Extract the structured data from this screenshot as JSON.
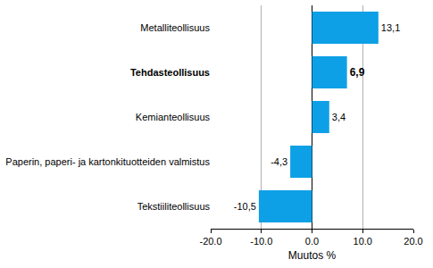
{
  "chart_data": {
    "type": "bar",
    "orientation": "horizontal",
    "categories": [
      "Metalliteollisuus",
      "Tehdasteollisuus",
      "Kemianteollisuus",
      "Paperin, paperi- ja kartonkituotteiden valmistus",
      "Tekstiiliteollisuus"
    ],
    "values": [
      13.1,
      6.9,
      3.4,
      -4.3,
      -10.5
    ],
    "value_labels": [
      "13,1",
      "6,9",
      "3,4",
      "-4,3",
      "-10,5"
    ],
    "data_labels": true,
    "color": "#0ea0e6",
    "xlabel": "Muutos %",
    "xlim": [
      -20,
      20
    ],
    "xticks": [
      {
        "value": -20,
        "label": "-20.0"
      },
      {
        "value": -10,
        "label": "-10.0"
      },
      {
        "value": 0,
        "label": "0.0"
      },
      {
        "value": 10,
        "label": "10.0"
      },
      {
        "value": 20,
        "label": "20.0"
      }
    ],
    "grid": true
  }
}
